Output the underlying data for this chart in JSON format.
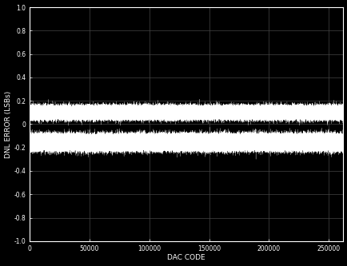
{
  "title": "",
  "xlabel": "DAC CODE",
  "ylabel": "DNL ERROR (LSBs)",
  "xlim": [
    0,
    262144
  ],
  "ylim": [
    -1.0,
    1.0
  ],
  "yticks": [
    -1.0,
    -0.8,
    -0.6,
    -0.4,
    -0.2,
    0,
    0.2,
    0.4,
    0.6,
    0.8,
    1.0
  ],
  "ytick_labels": [
    "-1.0",
    "-0.8",
    "-0.6",
    "-0.4",
    "-0.2",
    "0",
    "0.2",
    "0.4",
    "0.6",
    "0.8",
    "1.0"
  ],
  "xticks": [
    0,
    50000,
    100000,
    150000,
    200000,
    250000
  ],
  "xtick_labels": [
    "0",
    "50000",
    "100000",
    "150000",
    "200000",
    "250000"
  ],
  "background_color": "#000000",
  "line_color": "#ffffff",
  "grid_color": "#444444",
  "num_points": 262144,
  "line1_mean": 0.1,
  "line1_std": 0.025,
  "line2_mean": -0.155,
  "line2_std": 0.03,
  "seed": 42,
  "figwidth": 4.35,
  "figheight": 3.33,
  "dpi": 100
}
